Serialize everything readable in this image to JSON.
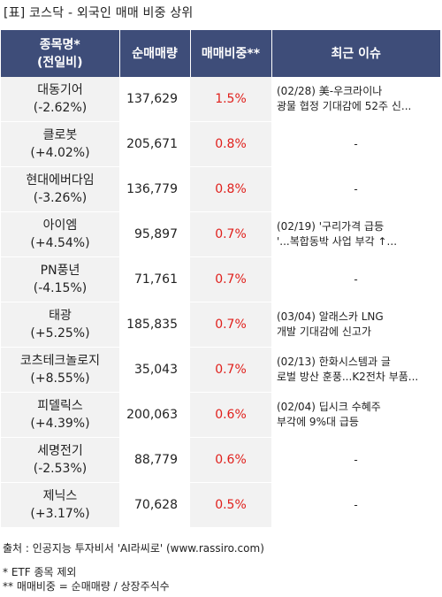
{
  "title": "[표] 코스닥 - 외국인 매매 비중 상위",
  "headers": {
    "name_line1": "종목명*",
    "name_line2": "(전일비)",
    "qty": "순매매량",
    "ratio": "매매비중**",
    "issue": "최근 이슈"
  },
  "rows": [
    {
      "name": "대동기어",
      "change": "(-2.62%)",
      "qty": "137,629",
      "ratio": "1.5%",
      "issue1": "(02/28) 美-우크라이나",
      "issue2": "광물 협정 기대감에 52주 신..."
    },
    {
      "name": "클로봇",
      "change": "(+4.02%)",
      "qty": "205,671",
      "ratio": "0.8%",
      "issue1": "-",
      "issue2": ""
    },
    {
      "name": "현대에버다임",
      "change": "(-3.26%)",
      "qty": "136,779",
      "ratio": "0.8%",
      "issue1": "-",
      "issue2": ""
    },
    {
      "name": "아이엠",
      "change": "(+4.54%)",
      "qty": "95,897",
      "ratio": "0.7%",
      "issue1": "(02/19) '구리가격 급등",
      "issue2": "'...복합동박 사업 부각 ↑..."
    },
    {
      "name": "PN풍년",
      "change": "(-4.15%)",
      "qty": "71,761",
      "ratio": "0.7%",
      "issue1": "-",
      "issue2": ""
    },
    {
      "name": "태광",
      "change": "(+5.25%)",
      "qty": "185,835",
      "ratio": "0.7%",
      "issue1": "(03/04) 알래스카 LNG",
      "issue2": " 개발 기대감에 신고가"
    },
    {
      "name": "코츠테크놀로지",
      "change": "(+8.55%)",
      "qty": "35,043",
      "ratio": "0.7%",
      "issue1": "(02/13) 한화시스템과 글",
      "issue2": "로벌 방산 훈풍...K2전차 부품..."
    },
    {
      "name": "피델릭스",
      "change": "(+4.39%)",
      "qty": "200,063",
      "ratio": "0.6%",
      "issue1": "(02/04) 딥시크 수혜주",
      "issue2": "부각에 9%대 급등"
    },
    {
      "name": "세명전기",
      "change": "(-2.53%)",
      "qty": "88,779",
      "ratio": "0.6%",
      "issue1": "-",
      "issue2": ""
    },
    {
      "name": "제닉스",
      "change": "(+3.17%)",
      "qty": "70,628",
      "ratio": "0.5%",
      "issue1": "-",
      "issue2": ""
    }
  ],
  "footer": {
    "source": "출처 : 인공지능 투자비서 'AI라씨로' (www.rassiro.com)",
    "note1": "* ETF 종목 제외",
    "note2": "** 매매비중 = 순매매량 / 상장주식수"
  }
}
